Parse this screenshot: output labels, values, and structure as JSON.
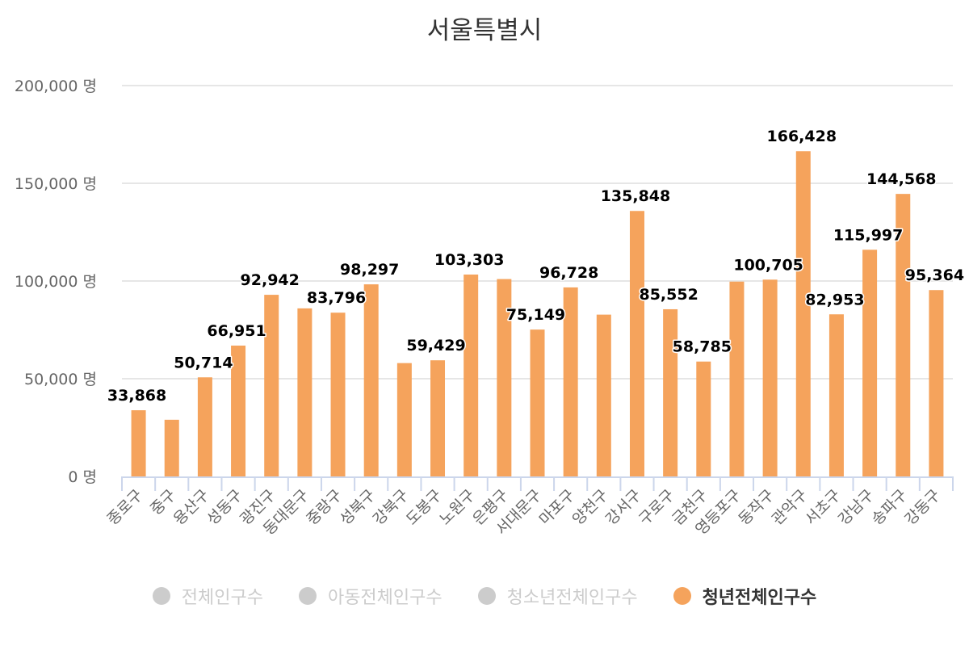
{
  "chart_data": {
    "type": "bar",
    "title": "서울특별시",
    "xlabel": "",
    "ylabel": "",
    "ylim": [
      0,
      200000
    ],
    "y_ticks": [
      0,
      50000,
      100000,
      150000,
      200000
    ],
    "y_tick_labels": [
      "0 명",
      "50,000 명",
      "100,000 명",
      "150,000 명",
      "200,000 명"
    ],
    "grid": true,
    "legend_position": "bottom",
    "categories": [
      "종로구",
      "중구",
      "용산구",
      "성동구",
      "광진구",
      "동대문구",
      "중랑구",
      "성북구",
      "강북구",
      "도봉구",
      "노원구",
      "은평구",
      "서대문구",
      "마포구",
      "양천구",
      "강서구",
      "구로구",
      "금천구",
      "영등포구",
      "동작구",
      "관악구",
      "서초구",
      "강남구",
      "송파구",
      "강동구"
    ],
    "series": [
      {
        "name": "청년전체인구수",
        "color": "#f5a35c",
        "values": [
          33868,
          29000,
          50714,
          66951,
          92942,
          86000,
          83796,
          98297,
          58000,
          59429,
          103303,
          101000,
          75149,
          96728,
          82800,
          135848,
          85552,
          58785,
          99700,
          100705,
          166428,
          82953,
          115997,
          144568,
          95364
        ],
        "labels_shown": [
          true,
          false,
          true,
          true,
          true,
          false,
          true,
          true,
          false,
          true,
          true,
          false,
          true,
          true,
          false,
          true,
          true,
          true,
          false,
          true,
          true,
          true,
          true,
          true,
          true
        ]
      }
    ],
    "legend": [
      {
        "name": "전체인구수",
        "active": false
      },
      {
        "name": "아동전체인구수",
        "active": false
      },
      {
        "name": "청소년전체인구수",
        "active": false
      },
      {
        "name": "청년전체인구수",
        "active": true,
        "color": "#f5a35c"
      }
    ]
  }
}
